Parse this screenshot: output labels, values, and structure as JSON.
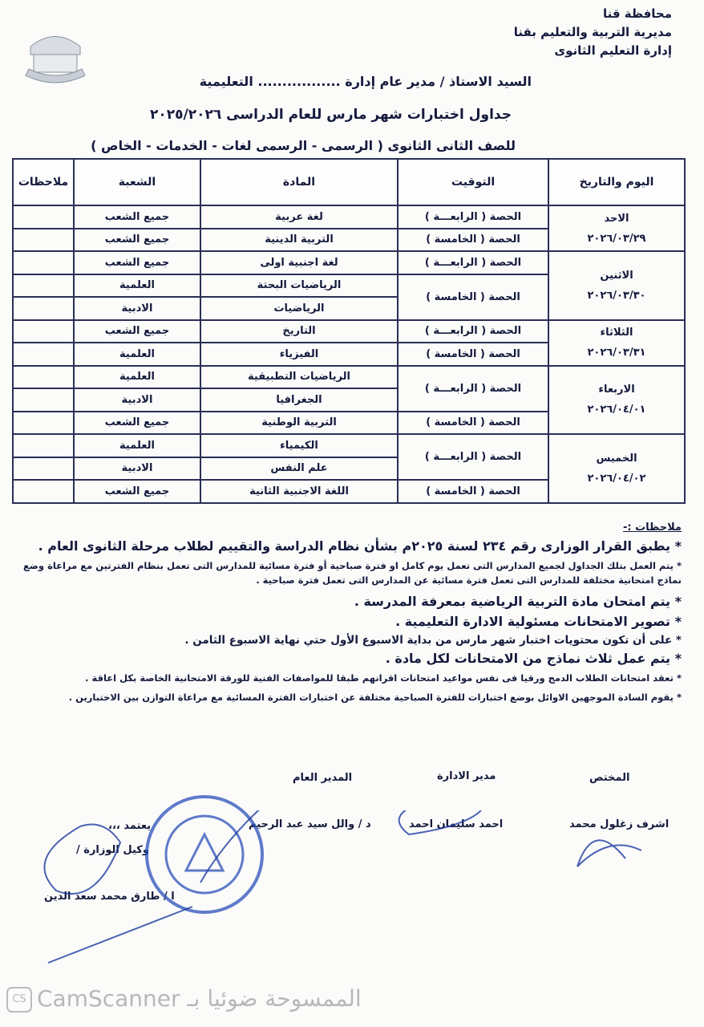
{
  "header": {
    "lines": [
      "محافظة قنا",
      "مديرية التربية والتعليم بقنا",
      "إدارة التعليم الثانوى"
    ],
    "addressee": "السيد الاستاذ / مدير عام إدارة ................. التعليمية",
    "title": "جداول اختبارات شهر مارس للعام الدراسى ٢٠٢٥/٢٠٢٦",
    "subtitle": "للصف الثانى الثانوى ( الرسمى - الرسمى لغات - الخدمات - الخاص )"
  },
  "table": {
    "headers": [
      "اليوم والتاريخ",
      "التوقيت",
      "المادة",
      "الشعبة",
      "ملاحظات"
    ],
    "days": [
      {
        "day": "الاحد",
        "date": "٢٠٢٦/٠٣/٢٩",
        "slots": [
          {
            "time": "الحصة ( الرابعـــة )",
            "rows": [
              {
                "subject": "لغة عربية",
                "branch": "جميع الشعب"
              }
            ]
          },
          {
            "time": "الحصة ( الخامسة )",
            "rows": [
              {
                "subject": "التربية الدينية",
                "branch": "جميع الشعب"
              }
            ]
          }
        ]
      },
      {
        "day": "الاثنين",
        "date": "٢٠٢٦/٠٣/٣٠",
        "slots": [
          {
            "time": "الحصة ( الرابعـــة )",
            "rows": [
              {
                "subject": "لغة اجنبية اولى",
                "branch": "جميع الشعب"
              }
            ]
          },
          {
            "time": "الحصة ( الخامسة )",
            "rows": [
              {
                "subject": "الرياضيات البحتة",
                "branch": "العلمية"
              },
              {
                "subject": "الرياضيات",
                "branch": "الادبية"
              }
            ]
          }
        ]
      },
      {
        "day": "الثلاثاء",
        "date": "٢٠٢٦/٠٣/٣١",
        "slots": [
          {
            "time": "الحصة ( الرابعـــة )",
            "rows": [
              {
                "subject": "التاريخ",
                "branch": "جميع الشعب"
              }
            ]
          },
          {
            "time": "الحصة ( الخامسة )",
            "rows": [
              {
                "subject": "الفيزياء",
                "branch": "العلمية"
              }
            ]
          }
        ]
      },
      {
        "day": "الاربعاء",
        "date": "٢٠٢٦/٠٤/٠١",
        "slots": [
          {
            "time": "الحصة ( الرابعـــة )",
            "rows": [
              {
                "subject": "الرياضيات التطبيقية",
                "branch": "العلمية"
              },
              {
                "subject": "الجغرافيا",
                "branch": "الادبية"
              }
            ]
          },
          {
            "time": "الحصة ( الخامسة )",
            "rows": [
              {
                "subject": "التربية الوطنية",
                "branch": "جميع الشعب"
              }
            ]
          }
        ]
      },
      {
        "day": "الخميس",
        "date": "٢٠٢٦/٠٤/٠٢",
        "slots": [
          {
            "time": "الحصة ( الرابعـــة )",
            "rows": [
              {
                "subject": "الكيمياء",
                "branch": "العلمية"
              },
              {
                "subject": "علم النفس",
                "branch": "الادبية"
              }
            ]
          },
          {
            "time": "الحصة ( الخامسة )",
            "rows": [
              {
                "subject": "اللغة الاجنبية الثانية",
                "branch": "جميع الشعب"
              }
            ]
          }
        ]
      }
    ]
  },
  "notes": {
    "heading": "ملاحظات :-",
    "items": [
      {
        "text": "* يطبق القرار الوزارى رقم ٢٣٤ لسنة ٢٠٢٥م بشأن نظام الدراسة والتقييم لطلاب مرحلة الثانوى العام .",
        "size": "big"
      },
      {
        "text": "* يتم العمل بتلك الجداول لجميع المدارس التى تعمل يوم كامل او فترة صباحية أو فترة مسائية للمدارس التى تعمل بنظام الفترتين مع مراعاة وضع نماذج امتحانية مختلفة للمدارس التى تعمل فترة مسائية عن المدارس التى تعمل فترة صباحية .",
        "size": "sm"
      },
      {
        "text": "* يتم امتحان مادة التربية الرياضية بمعرفة المدرسة .",
        "size": "big"
      },
      {
        "text": "* تصوير الامتحانات مسئولية الادارة التعليمية .",
        "size": "big"
      },
      {
        "text": "* على أن تكون محتويات اختبار شهر مارس من بداية الاسبوع الأول حتي نهاية الاسبوع الثامن .",
        "size": "mid"
      },
      {
        "text": "* يتم عمل ثلاث نماذج من الامتحانات لكل مادة .",
        "size": "big"
      },
      {
        "text": "* تعقد امتحانات الطلاب الدمج ورقيا فى نفس مواعيد امتحانات اقرانهم طبقا للمواصفات الفنية للورقة الامتحانية الخاصة بكل اعاقة .",
        "size": "sm"
      },
      {
        "text": "* يقوم السادة الموجهين الاوائل بوضع اختبارات للفترة الصباحية مختلفة عن اختبارات الفترة المسائية مع مراعاة التوازن بين الاختبارين .",
        "size": "sm"
      }
    ]
  },
  "signatures": {
    "specialist_title": "المختص",
    "specialist_name": "اشرف زغلول محمد",
    "admin_title": "مدير الادارة",
    "admin_name": "احمد سليمان احمد",
    "gm_title": "المدير العام",
    "gm_name": "د / والل سيد عبد الرحيم",
    "approve": "يعتمد ،،،",
    "deputy_title": "وكيل الوزارة /",
    "deputy_name": "ا / طارق محمد سعد الدين"
  },
  "watermark": {
    "cs": "CS",
    "text": "CamScanner الممسوحة ضوئيا بـ"
  },
  "colors": {
    "ink": "#141a3c",
    "stamp": "#2a4fb8"
  }
}
